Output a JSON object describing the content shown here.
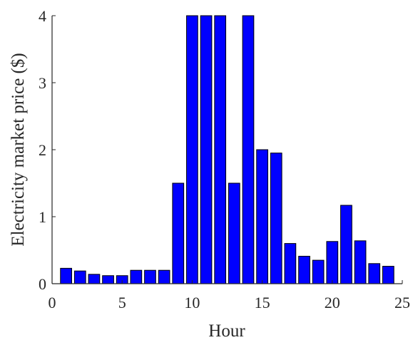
{
  "chart_data": {
    "type": "bar",
    "xlabel": "Hour",
    "ylabel": "Electricity market price ($)",
    "xlim": [
      0,
      25
    ],
    "ylim": [
      0,
      4
    ],
    "xticks": [
      0,
      5,
      10,
      15,
      20,
      25
    ],
    "yticks": [
      0,
      1,
      2,
      3,
      4
    ],
    "x_tick_labels": [
      "0",
      "5",
      "10",
      "15",
      "20",
      "25"
    ],
    "y_tick_labels": [
      "0",
      "1",
      "2",
      "3",
      "4"
    ],
    "categories": [
      1,
      2,
      3,
      4,
      5,
      6,
      7,
      8,
      9,
      10,
      11,
      12,
      13,
      14,
      15,
      16,
      17,
      18,
      19,
      20,
      21,
      22,
      23,
      24
    ],
    "values": [
      0.23,
      0.19,
      0.14,
      0.12,
      0.12,
      0.2,
      0.2,
      0.2,
      1.5,
      4.0,
      4.0,
      4.0,
      1.5,
      4.0,
      2.0,
      1.95,
      0.6,
      0.41,
      0.35,
      0.63,
      1.17,
      0.64,
      0.3,
      0.26
    ],
    "bar_color": "#0000ff",
    "grid": false
  }
}
